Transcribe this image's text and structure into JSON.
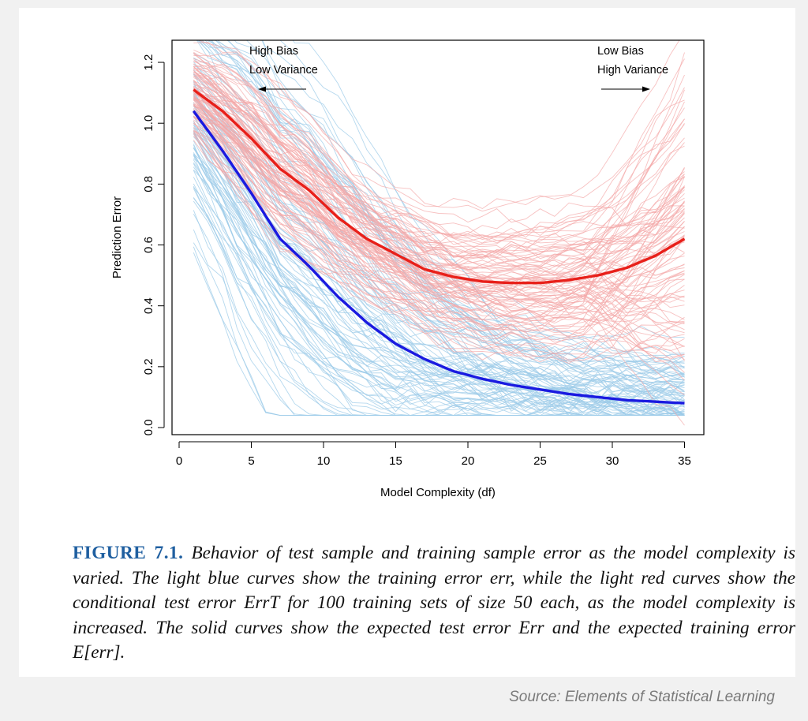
{
  "chart_data": {
    "type": "line",
    "title": "",
    "xlabel": "Model Complexity (df)",
    "ylabel": "Prediction Error",
    "xlim": [
      0,
      35
    ],
    "ylim": [
      0,
      1.2
    ],
    "xticks": [
      0,
      5,
      10,
      15,
      20,
      25,
      30,
      35
    ],
    "yticks": [
      0.0,
      0.2,
      0.4,
      0.6,
      0.8,
      1.0,
      1.2
    ],
    "xtick_labels": [
      "0",
      "5",
      "10",
      "15",
      "20",
      "25",
      "30",
      "35"
    ],
    "ytick_labels": [
      "0.0",
      "0.2",
      "0.4",
      "0.6",
      "0.8",
      "1.0",
      "1.2"
    ],
    "grid": false,
    "annotations": {
      "left_line1": "High Bias",
      "left_line2": "Low Variance",
      "right_line1": "Low Bias",
      "right_line2": "High Variance"
    },
    "series": [
      {
        "name": "Expected test error Err",
        "color": "#e8201a",
        "x": [
          1,
          3,
          5,
          7,
          9,
          11,
          13,
          15,
          17,
          19,
          21,
          23,
          25,
          27,
          29,
          31,
          33,
          35
        ],
        "values": [
          1.11,
          1.04,
          0.95,
          0.85,
          0.78,
          0.69,
          0.62,
          0.57,
          0.52,
          0.495,
          0.48,
          0.475,
          0.475,
          0.485,
          0.5,
          0.525,
          0.565,
          0.62
        ]
      },
      {
        "name": "Expected training error E[err]",
        "color": "#1a1ae0",
        "x": [
          1,
          3,
          5,
          7,
          9,
          11,
          13,
          15,
          17,
          19,
          21,
          23,
          25,
          27,
          29,
          31,
          33,
          35
        ],
        "values": [
          1.04,
          0.91,
          0.77,
          0.62,
          0.53,
          0.43,
          0.345,
          0.275,
          0.225,
          0.185,
          0.16,
          0.14,
          0.125,
          0.11,
          0.1,
          0.09,
          0.085,
          0.08
        ]
      }
    ],
    "sample_curves": {
      "count_each": 100,
      "test_color": "#f4a6a6",
      "train_color": "#9ccbe8",
      "description_test": "light red curves: conditional test error ErrT for 100 training sets",
      "description_train": "light blue curves: training error err for 100 training sets"
    }
  },
  "caption": {
    "label": "FIGURE 7.1.",
    "text": "Behavior of test sample and training sample error as the model complexity is varied. The light blue curves show the training error err, while the light red curves show the conditional test error ErrT for 100 training sets of size 50 each, as the model complexity is increased. The solid curves show the expected test error Err and the expected training error E[err]."
  },
  "source": "Source: Elements of Statistical Learning"
}
